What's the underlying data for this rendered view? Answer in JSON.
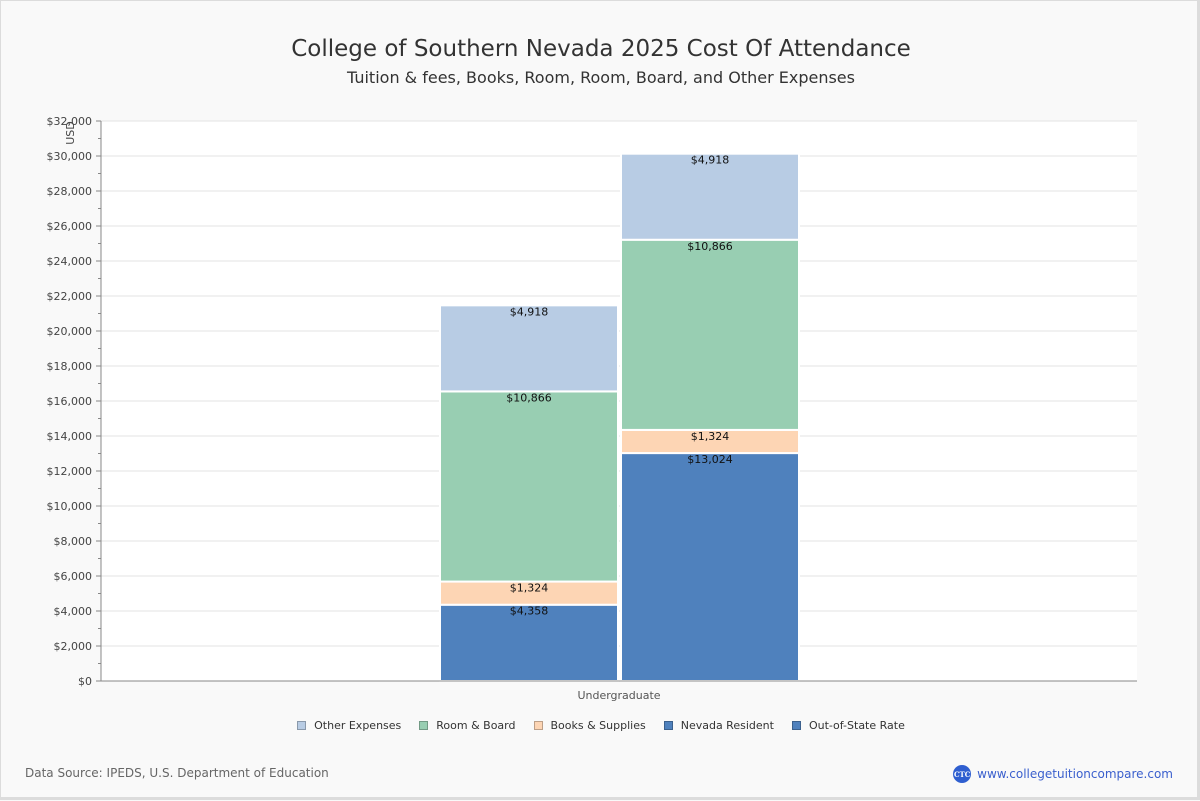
{
  "header": {
    "title": "College of Southern Nevada 2025 Cost Of Attendance",
    "subtitle": "Tuition & fees, Books, Room, Room, Board, and Other Expenses"
  },
  "chart_data": {
    "type": "bar",
    "stacked": true,
    "title": "College of Southern Nevada 2025 Cost Of Attendance",
    "subtitle": "Tuition & fees, Books, Room, Room, Board, and Other Expenses",
    "xlabel": "",
    "ylabel": "USD",
    "ylim": [
      0,
      32000
    ],
    "y_ticks": [
      0,
      2000,
      4000,
      6000,
      8000,
      10000,
      12000,
      14000,
      16000,
      18000,
      20000,
      22000,
      24000,
      26000,
      28000,
      30000,
      32000
    ],
    "y_tick_labels": [
      "$0",
      "$2,000",
      "$4,000",
      "$6,000",
      "$8,000",
      "$10,000",
      "$12,000",
      "$14,000",
      "$16,000",
      "$18,000",
      "$20,000",
      "$22,000",
      "$24,000",
      "$26,000",
      "$28,000",
      "$30,000",
      "$32,000"
    ],
    "grid": true,
    "categories": [
      "Undergraduate"
    ],
    "stacks": [
      {
        "name": "Nevada Resident",
        "segments": [
          {
            "series": "Nevada Resident",
            "value": 4358,
            "label": "$4,358"
          },
          {
            "series": "Books & Supplies",
            "value": 1324,
            "label": "$1,324"
          },
          {
            "series": "Room & Board",
            "value": 10866,
            "label": "$10,866"
          },
          {
            "series": "Other Expenses",
            "value": 4918,
            "label": "$4,918"
          }
        ]
      },
      {
        "name": "Out-of-State Rate",
        "segments": [
          {
            "series": "Out-of-State Rate",
            "value": 13024,
            "label": "$13,024"
          },
          {
            "series": "Books & Supplies",
            "value": 1324,
            "label": "$1,324"
          },
          {
            "series": "Room & Board",
            "value": 10866,
            "label": "$10,866"
          },
          {
            "series": "Other Expenses",
            "value": 4918,
            "label": "$4,918"
          }
        ]
      }
    ],
    "series": [
      {
        "name": "Other Expenses",
        "color": "#b8cce4"
      },
      {
        "name": "Room & Board",
        "color": "#98ceb2"
      },
      {
        "name": "Books & Supplies",
        "color": "#fdd5b4"
      },
      {
        "name": "Nevada Resident",
        "color": "#4f81bd"
      },
      {
        "name": "Out-of-State Rate",
        "color": "#4f81bd"
      }
    ],
    "legend_position": "bottom-center"
  },
  "footer": {
    "source": "Data Source: IPEDS, U.S. Department of Education",
    "brand_logo_text": "CTC",
    "brand_url_text": "www.collegetuitioncompare.com"
  }
}
